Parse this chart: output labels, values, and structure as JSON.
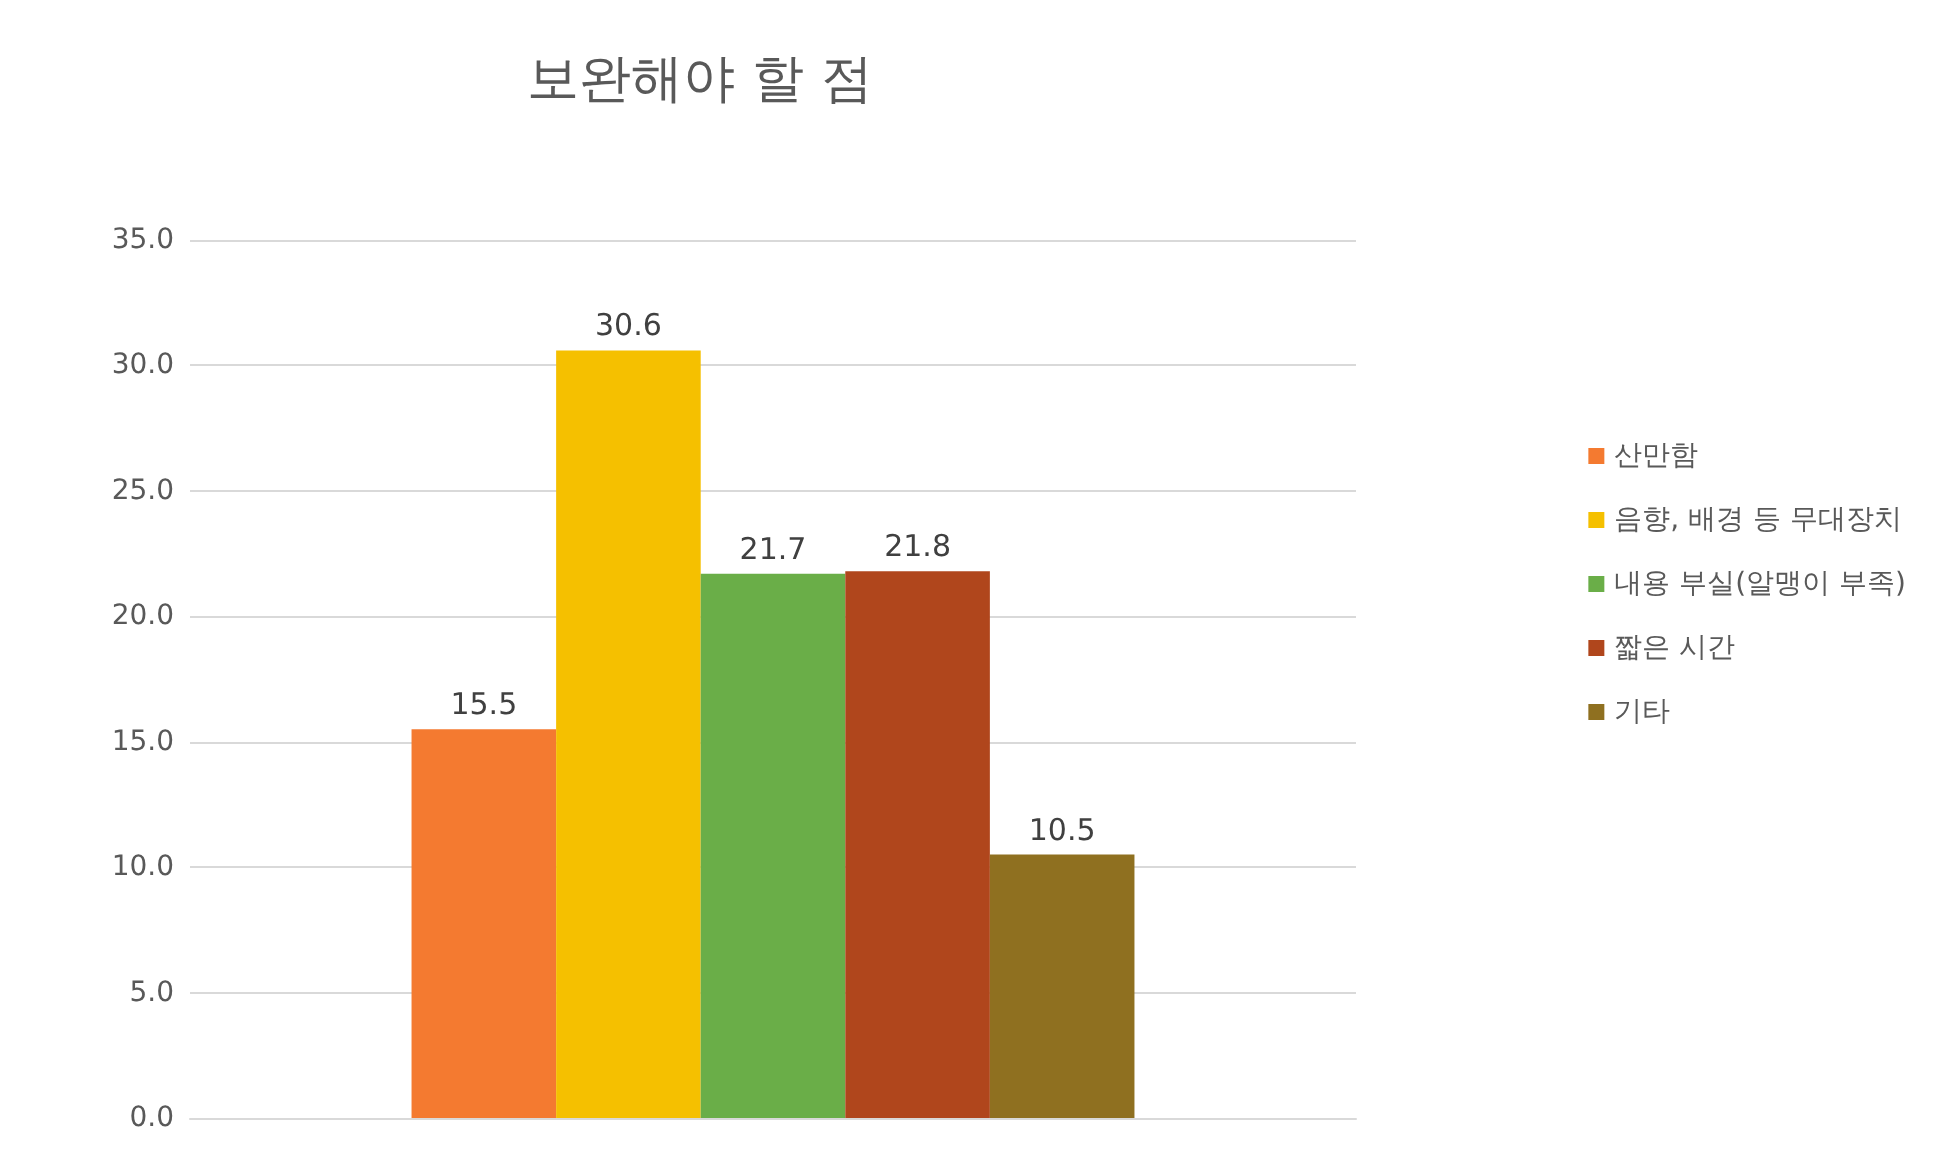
{
  "chart_data": {
    "type": "bar",
    "title": "보완해야 할 점",
    "categories": [
      null
    ],
    "series": [
      {
        "name": "산만함",
        "color": "#f47a30",
        "values": [
          15.5
        ]
      },
      {
        "name": "음향, 배경 등 무대장치",
        "color": "#f5c000",
        "values": [
          30.6
        ]
      },
      {
        "name": "내용 부실(알맹이 부족)",
        "color": "#6aae48",
        "values": [
          21.7
        ]
      },
      {
        "name": "짧은 시간",
        "color": "#b0461c",
        "values": [
          21.8
        ]
      },
      {
        "name": "기타",
        "color": "#8f7020",
        "values": [
          10.5
        ]
      }
    ],
    "ylim": [
      0,
      35
    ],
    "yticks": [
      {
        "value": 0,
        "label": "0.0"
      },
      {
        "value": 5,
        "label": "5.0"
      },
      {
        "value": 10,
        "label": "10.0"
      },
      {
        "value": 15,
        "label": "15.0"
      },
      {
        "value": 20,
        "label": "20.0"
      },
      {
        "value": 25,
        "label": "25.0"
      },
      {
        "value": 30,
        "label": "30.0"
      },
      {
        "value": 35,
        "label": "35.0"
      }
    ],
    "grid": "y",
    "legend": "right",
    "data_labels": true
  }
}
